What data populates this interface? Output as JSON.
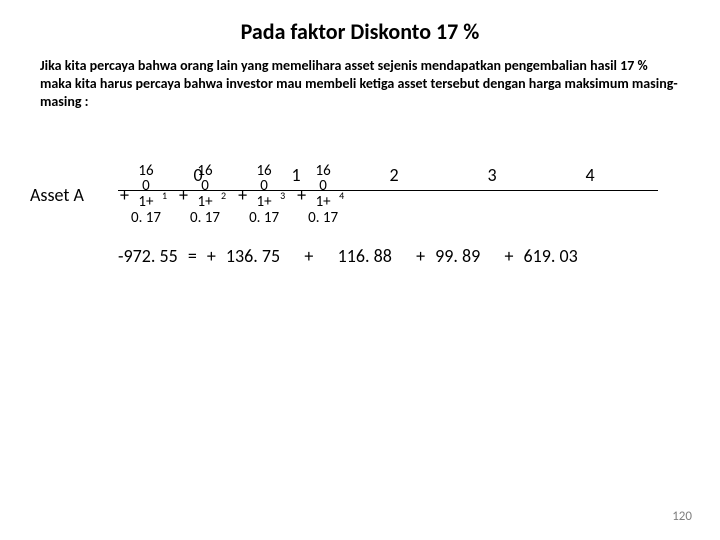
{
  "title": "Pada faktor Diskonto 17 %",
  "paragraph": "Jika kita percaya bahwa orang lain yang memelihara asset sejenis mendapatkan pengembalian hasil 17 % maka kita harus percaya bahwa investor mau membeli ketiga asset tersebut dengan harga maksimum masing-masing :",
  "asset_label": "Asset A",
  "timeline": {
    "n0": "0",
    "n1": "1",
    "n2": "2",
    "n3": "3",
    "n4": "4"
  },
  "terms": [
    {
      "plus": "+",
      "num": "16",
      "d1": "0",
      "d2": "1+",
      "d3": "0. 17",
      "exp": "1"
    },
    {
      "plus": "+",
      "num": "16",
      "d1": "0",
      "d2": "1+",
      "d3": "0. 17",
      "exp": "2"
    },
    {
      "plus": "+",
      "num": "16",
      "d1": "0",
      "d2": "1+",
      "d3": "0. 17",
      "exp": "3"
    },
    {
      "plus": "+",
      "num": "16",
      "d1": "0",
      "d2": "1+",
      "d3": "0. 17",
      "exp": "4"
    }
  ],
  "equation": {
    "t0": "-972. 55",
    "eq": "=",
    "p1": "+",
    "v1": "136. 75",
    "p2": "+",
    "v2": "116. 88",
    "p3": "+",
    "v3": "99. 89",
    "p4": "+",
    "v4": "619. 03"
  },
  "page_number": "120"
}
